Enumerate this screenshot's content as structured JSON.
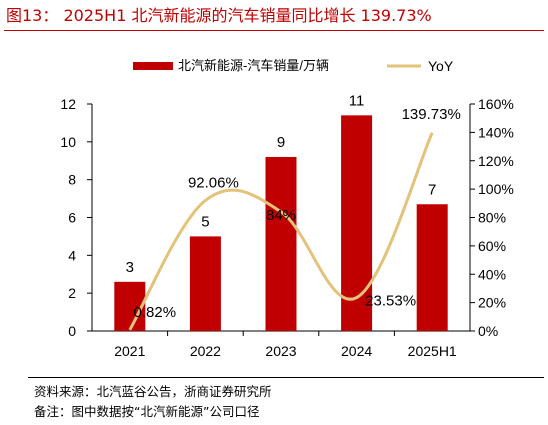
{
  "title": "图13：  2025H1 北汽新能源的汽车销量同比增长 139.73%",
  "source": "资料来源：北汽蓝谷公告，浙商证券研究所",
  "remark": "备注：图中数据按“北汽新能源”公司口径",
  "chart_data": {
    "type": "bar",
    "categories": [
      "2021",
      "2022",
      "2023",
      "2024",
      "2025H1"
    ],
    "series": [
      {
        "name": "北汽新能源-汽车销量/万辆",
        "type": "bar",
        "axis": "left",
        "color": "#c00000",
        "values": [
          2.6,
          5.0,
          9.2,
          11.4,
          6.7
        ],
        "labels": [
          "3",
          "5",
          "9",
          "11",
          "7"
        ]
      },
      {
        "name": "YoY",
        "type": "line",
        "axis": "right",
        "color": "#e3c27a",
        "values": [
          0.0082,
          0.9206,
          0.84,
          0.2353,
          1.3973
        ],
        "labels": [
          "0.82%",
          "92.06%",
          "84%",
          "23.53%",
          "139.73%"
        ]
      }
    ],
    "y_left": {
      "min": 0,
      "max": 12,
      "ticks": [
        "0",
        "2",
        "4",
        "6",
        "8",
        "10",
        "12"
      ]
    },
    "y_right": {
      "min": 0,
      "max": 1.6,
      "ticks": [
        "0%",
        "20%",
        "40%",
        "60%",
        "80%",
        "100%",
        "120%",
        "140%",
        "160%"
      ]
    },
    "legend_position": "top",
    "grid": false
  }
}
